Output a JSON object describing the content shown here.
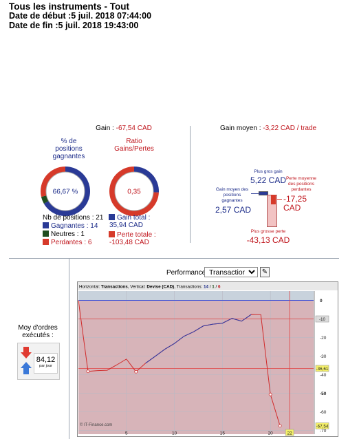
{
  "header": {
    "title": "Tous les instruments - Tout",
    "start": "Date de début :5 juil. 2018 07:44:00",
    "end": "Date de fin :5 juil. 2018 19:43:00"
  },
  "summary": {
    "gain_label": "Gain :",
    "gain_value": "-67,54 CAD",
    "winning_head": [
      "% de",
      "positions",
      "gagnantes"
    ],
    "ratio_head": [
      "Ratio",
      "Gains/Pertes"
    ],
    "donut_pct": "66,67 %",
    "donut_ratio": "0,35",
    "nb_positions": "Nb de positions : 21",
    "gagnantes": "Gagnantes : 14",
    "neutres": "Neutres : 1",
    "perdantes": "Perdantes : 6",
    "gain_total_label": "Gain total :",
    "gain_total_value": "35,94 CAD",
    "perte_totale_label": "Perte totale :",
    "perte_totale_value": "-103,48 CAD",
    "colors": {
      "win": "#2a3a96",
      "neutral": "#1e4d1e",
      "loss": "#d63a2a"
    },
    "share": {
      "win": 0.6667,
      "neutral": 0.0476,
      "loss": 0.2857
    },
    "ratio_share": {
      "gain": 0.258,
      "loss": 0.742
    }
  },
  "avg": {
    "label": "Gain moyen :",
    "value": "-3,22 CAD / trade",
    "max_gain_label": "Plus gros gain",
    "max_gain_value": "5,22 CAD",
    "avg_win_label": [
      "Gain moyen des",
      "positions",
      "gagnantes"
    ],
    "avg_win_value": "2,57 CAD",
    "avg_loss_label": [
      "Perte moyenne",
      "des positions",
      "perdantes"
    ],
    "avg_loss_value": "-17,25",
    "avg_loss_unit": "CAD",
    "max_loss_label": "Plus grosse perte",
    "max_loss_value": "-43,13 CAD"
  },
  "perf": {
    "title": "Performancebrute",
    "select_value": "Transactions",
    "orders_label": [
      "Moy d'ordres",
      "exécutés :"
    ],
    "orders_value": "84,12",
    "orders_unit": "par jour",
    "chart_header": {
      "h": "Horizontal: ",
      "h_val": "Transactions",
      "v": ", Vertical: ",
      "v_val": "Devise (CAD)",
      "tr": ", Transactions: ",
      "win": "14",
      "s1": " / ",
      "neu": "1",
      "s2": " / ",
      "loss": "6"
    },
    "watermark": "© IT-Finance.com",
    "current_x_label": "22",
    "mark_1": "-10",
    "mark_2": "-36,61",
    "mark_3": "-67,54"
  },
  "chart_data": {
    "type": "line",
    "xlabel": "",
    "ylabel": "",
    "xlim": [
      0,
      24.5
    ],
    "ylim": [
      -72,
      5
    ],
    "x_ticks": [
      5,
      10,
      15,
      20
    ],
    "y_ticks": [
      0,
      -10,
      -20,
      -30,
      -40,
      -50,
      -60,
      -70
    ],
    "bold_y_ticks": [
      0,
      -50
    ],
    "ref_lines": [
      -10,
      -36.61
    ],
    "current_x": 22,
    "series": [
      {
        "x": [
          1,
          2,
          3,
          4,
          5,
          6,
          7,
          8,
          9,
          10,
          11,
          12,
          13,
          14,
          15,
          16,
          17,
          18,
          19,
          20,
          21
        ],
        "y": [
          -38.2,
          -37.8,
          -37.6,
          -34.7,
          -31.6,
          -38.4,
          -33.8,
          -30.1,
          -26.3,
          -23.2,
          -19.3,
          -16.9,
          -13.8,
          -12.8,
          -12.3,
          -9.7,
          -11.2,
          -7.6,
          -7.7,
          -50.6,
          -67.5
        ]
      }
    ]
  }
}
